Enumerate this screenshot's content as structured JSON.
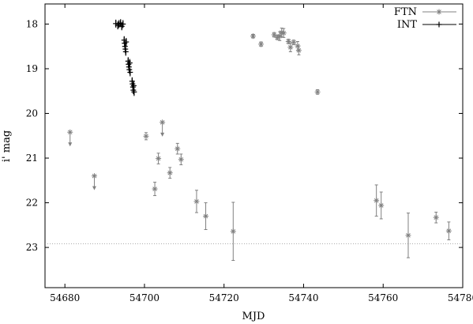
{
  "chart_data": {
    "type": "scatter",
    "title": "",
    "xlabel": "MJD",
    "ylabel": "i' mag",
    "xlim": [
      54675,
      54780
    ],
    "ylim": [
      23.9,
      17.55
    ],
    "y_inverted": true,
    "x_ticks": [
      54680,
      54700,
      54720,
      54740,
      54760,
      54780
    ],
    "y_ticks": [
      18,
      19,
      20,
      21,
      22,
      23
    ],
    "grid": false,
    "legend_position": "top-right",
    "reference_line": {
      "y": 22.92,
      "style": "dotted"
    },
    "series": [
      {
        "name": "FTN",
        "color": "#808080",
        "marker": "asterisk",
        "points": [
          {
            "x": 54727.3,
            "y": 18.27,
            "err": 0.04
          },
          {
            "x": 54729.3,
            "y": 18.45,
            "err": 0.05
          },
          {
            "x": 54732.6,
            "y": 18.24,
            "err": 0.05
          },
          {
            "x": 54733.4,
            "y": 18.3,
            "err": 0.05
          },
          {
            "x": 54734.0,
            "y": 18.27,
            "err": 0.1
          },
          {
            "x": 54734.5,
            "y": 18.19,
            "err": 0.1
          },
          {
            "x": 54735.0,
            "y": 18.2,
            "err": 0.1
          },
          {
            "x": 54736.2,
            "y": 18.39,
            "err": 0.05
          },
          {
            "x": 54736.7,
            "y": 18.52,
            "err": 0.1
          },
          {
            "x": 54737.5,
            "y": 18.41,
            "err": 0.05
          },
          {
            "x": 54738.5,
            "y": 18.49,
            "err": 0.1
          },
          {
            "x": 54738.8,
            "y": 18.59,
            "err": 0.1
          },
          {
            "x": 54743.5,
            "y": 19.52,
            "err": 0.05
          },
          {
            "x": 54700.4,
            "y": 20.51,
            "err": 0.08
          },
          {
            "x": 54703.5,
            "y": 21.01,
            "err": 0.12
          },
          {
            "x": 54702.6,
            "y": 21.69,
            "err": 0.15
          },
          {
            "x": 54706.4,
            "y": 21.33,
            "err": 0.12
          },
          {
            "x": 54708.3,
            "y": 20.79,
            "err": 0.12
          },
          {
            "x": 54709.2,
            "y": 21.03,
            "err": 0.12
          },
          {
            "x": 54713.1,
            "y": 21.97,
            "err": 0.25
          },
          {
            "x": 54715.4,
            "y": 22.3,
            "err": 0.3
          },
          {
            "x": 54722.3,
            "y": 22.64,
            "err": 0.65
          },
          {
            "x": 54758.3,
            "y": 21.95,
            "err": 0.35
          },
          {
            "x": 54759.5,
            "y": 22.06,
            "err": 0.3
          },
          {
            "x": 54766.3,
            "y": 22.73,
            "err": 0.5
          },
          {
            "x": 54773.3,
            "y": 22.33,
            "err": 0.12
          },
          {
            "x": 54776.5,
            "y": 22.63,
            "err": 0.2
          }
        ],
        "upper_limits": [
          {
            "x": 54681.3,
            "y": 20.42
          },
          {
            "x": 54687.4,
            "y": 21.4
          },
          {
            "x": 54704.5,
            "y": 20.2
          }
        ]
      },
      {
        "name": "INT",
        "color": "#000000",
        "marker": "plus",
        "points": [
          {
            "x": 54692.8,
            "y": 17.99
          },
          {
            "x": 54693.3,
            "y": 18.03
          },
          {
            "x": 54693.6,
            "y": 18.0
          },
          {
            "x": 54694.0,
            "y": 17.98
          },
          {
            "x": 54694.3,
            "y": 18.05
          },
          {
            "x": 54694.6,
            "y": 18.0
          },
          {
            "x": 54694.9,
            "y": 18.36
          },
          {
            "x": 54695.0,
            "y": 18.43
          },
          {
            "x": 54695.1,
            "y": 18.5
          },
          {
            "x": 54695.2,
            "y": 18.56
          },
          {
            "x": 54695.3,
            "y": 18.62
          },
          {
            "x": 54695.4,
            "y": 18.4
          },
          {
            "x": 54695.9,
            "y": 18.83
          },
          {
            "x": 54696.0,
            "y": 18.9
          },
          {
            "x": 54696.1,
            "y": 18.96
          },
          {
            "x": 54696.2,
            "y": 19.02
          },
          {
            "x": 54696.3,
            "y": 18.87
          },
          {
            "x": 54696.4,
            "y": 19.08
          },
          {
            "x": 54696.9,
            "y": 19.28
          },
          {
            "x": 54697.0,
            "y": 19.34
          },
          {
            "x": 54697.1,
            "y": 19.41
          },
          {
            "x": 54697.2,
            "y": 19.48
          },
          {
            "x": 54697.3,
            "y": 19.38
          },
          {
            "x": 54697.4,
            "y": 19.52
          }
        ]
      }
    ]
  }
}
